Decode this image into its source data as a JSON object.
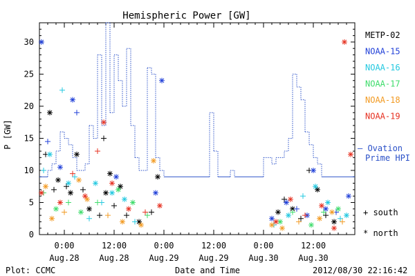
{
  "chart_data": {
    "type": "scatter",
    "title": "Hemispheric Power [GW]",
    "ylabel": "P [GW]",
    "xlabel": "Date and Time",
    "ylim": [
      0,
      33
    ],
    "yticks": [
      0,
      5,
      10,
      15,
      20,
      25,
      30
    ],
    "xlim_hours": [
      -6,
      70
    ],
    "x_ticks": [
      {
        "hour": 0,
        "time": "0:00",
        "date": "Aug.28"
      },
      {
        "hour": 12,
        "time": "12:00",
        "date": "Aug.28"
      },
      {
        "hour": 24,
        "time": "0:00",
        "date": "Aug.29"
      },
      {
        "hour": 36,
        "time": "12:00",
        "date": "Aug.29"
      },
      {
        "hour": 48,
        "time": "0:00",
        "date": "Aug.30"
      },
      {
        "hour": 60,
        "time": "12:00",
        "date": "Aug.30"
      }
    ],
    "legend": {
      "series": [
        {
          "name": "METP-02",
          "color": "#000000"
        },
        {
          "name": "NOAA-15",
          "color": "#1f3fd8"
        },
        {
          "name": "NOAA-16",
          "color": "#22c8e0"
        },
        {
          "name": "NOAA-17",
          "color": "#3ddc6a"
        },
        {
          "name": "NOAA-18",
          "color": "#f29a22"
        },
        {
          "name": "NOAA-19",
          "color": "#e63020"
        }
      ],
      "ovation_label_1": "— Ovation",
      "ovation_label_2": "Prime HPI",
      "ovation_color": "#2a50c8",
      "south_label": "+ south",
      "north_label": "* north"
    },
    "ovation_series": [
      [
        -6,
        9
      ],
      [
        -4,
        9
      ],
      [
        -4,
        10
      ],
      [
        -3,
        10
      ],
      [
        -3,
        11
      ],
      [
        -2,
        11
      ],
      [
        -2,
        13
      ],
      [
        -1,
        13
      ],
      [
        -1,
        16
      ],
      [
        0,
        16
      ],
      [
        0,
        15
      ],
      [
        1,
        15
      ],
      [
        1,
        14
      ],
      [
        2,
        14
      ],
      [
        2,
        12
      ],
      [
        3,
        12
      ],
      [
        3,
        10
      ],
      [
        5,
        10
      ],
      [
        5,
        11
      ],
      [
        6,
        11
      ],
      [
        6,
        17
      ],
      [
        7,
        17
      ],
      [
        7,
        15
      ],
      [
        8,
        15
      ],
      [
        8,
        28
      ],
      [
        9,
        28
      ],
      [
        9,
        17
      ],
      [
        10,
        17
      ],
      [
        10,
        33
      ],
      [
        11,
        33
      ],
      [
        11,
        19
      ],
      [
        12,
        19
      ],
      [
        12,
        28
      ],
      [
        13,
        28
      ],
      [
        13,
        24
      ],
      [
        14,
        24
      ],
      [
        14,
        20
      ],
      [
        15,
        20
      ],
      [
        15,
        29
      ],
      [
        16,
        29
      ],
      [
        16,
        17
      ],
      [
        17,
        17
      ],
      [
        17,
        12
      ],
      [
        18,
        12
      ],
      [
        18,
        10
      ],
      [
        20,
        10
      ],
      [
        20,
        26
      ],
      [
        21,
        26
      ],
      [
        21,
        25
      ],
      [
        22,
        25
      ],
      [
        22,
        12
      ],
      [
        23,
        12
      ],
      [
        23,
        10
      ],
      [
        24,
        10
      ],
      [
        24,
        9
      ],
      [
        35,
        9
      ],
      [
        35,
        19
      ],
      [
        36,
        19
      ],
      [
        36,
        13
      ],
      [
        37,
        13
      ],
      [
        37,
        9
      ],
      [
        40,
        9
      ],
      [
        40,
        10
      ],
      [
        41,
        10
      ],
      [
        41,
        9
      ],
      [
        48,
        9
      ],
      [
        48,
        12
      ],
      [
        50,
        12
      ],
      [
        50,
        11
      ],
      [
        51,
        11
      ],
      [
        51,
        12
      ],
      [
        53,
        12
      ],
      [
        53,
        13
      ],
      [
        54,
        13
      ],
      [
        54,
        15
      ],
      [
        55,
        15
      ],
      [
        55,
        25
      ],
      [
        56,
        25
      ],
      [
        56,
        23
      ],
      [
        57,
        23
      ],
      [
        57,
        21
      ],
      [
        58,
        21
      ],
      [
        58,
        16
      ],
      [
        59,
        16
      ],
      [
        59,
        14
      ],
      [
        60,
        14
      ],
      [
        60,
        12
      ],
      [
        61,
        12
      ],
      [
        61,
        11
      ],
      [
        62,
        11
      ],
      [
        62,
        9
      ],
      [
        70,
        9
      ]
    ],
    "points": [
      {
        "s": 0,
        "h": -4.5,
        "v": 12.5,
        "m": "+"
      },
      {
        "s": 0,
        "h": -3.5,
        "v": 19.0,
        "m": "*"
      },
      {
        "s": 0,
        "h": -2.5,
        "v": 7.0,
        "m": "+"
      },
      {
        "s": 0,
        "h": -1.5,
        "v": 8.5,
        "m": "*"
      },
      {
        "s": 0,
        "h": 0.5,
        "v": 7.5,
        "m": "+"
      },
      {
        "s": 0,
        "h": 1.5,
        "v": 6.5,
        "m": "*"
      },
      {
        "s": 0,
        "h": 3.0,
        "v": 12.5,
        "m": "*"
      },
      {
        "s": 0,
        "h": 4.5,
        "v": 7.0,
        "m": "+"
      },
      {
        "s": 0,
        "h": 6.0,
        "v": 4.0,
        "m": "*"
      },
      {
        "s": 0,
        "h": 8.5,
        "v": 3.0,
        "m": "+"
      },
      {
        "s": 0,
        "h": 9.5,
        "v": 15.0,
        "m": "+"
      },
      {
        "s": 0,
        "h": 10.0,
        "v": 6.5,
        "m": "*"
      },
      {
        "s": 0,
        "h": 11.0,
        "v": 9.5,
        "m": "*"
      },
      {
        "s": 0,
        "h": 12.0,
        "v": 4.5,
        "m": "+"
      },
      {
        "s": 0,
        "h": 13.5,
        "v": 7.5,
        "m": "*"
      },
      {
        "s": 0,
        "h": 15.0,
        "v": 3.0,
        "m": "+"
      },
      {
        "s": 0,
        "h": 18.0,
        "v": 2.0,
        "m": "*"
      },
      {
        "s": 0,
        "h": 21.0,
        "v": 3.5,
        "m": "+"
      },
      {
        "s": 0,
        "h": 22.5,
        "v": 9.0,
        "m": "*"
      },
      {
        "s": 0,
        "h": 51.5,
        "v": 3.5,
        "m": "*"
      },
      {
        "s": 0,
        "h": 53.0,
        "v": 5.5,
        "m": "+"
      },
      {
        "s": 0,
        "h": 55.0,
        "v": 4.0,
        "m": "*"
      },
      {
        "s": 0,
        "h": 57.0,
        "v": 2.5,
        "m": "+"
      },
      {
        "s": 0,
        "h": 59.0,
        "v": 10.0,
        "m": "+"
      },
      {
        "s": 0,
        "h": 61.0,
        "v": 7.0,
        "m": "*"
      },
      {
        "s": 0,
        "h": 63.0,
        "v": 3.0,
        "m": "+"
      },
      {
        "s": 0,
        "h": 65.0,
        "v": 2.0,
        "m": "*"
      },
      {
        "s": 1,
        "h": -5.5,
        "v": 30.0,
        "m": "*"
      },
      {
        "s": 1,
        "h": -4.0,
        "v": 14.5,
        "m": "+"
      },
      {
        "s": 1,
        "h": -1.0,
        "v": 10.5,
        "m": "*"
      },
      {
        "s": 1,
        "h": 2.0,
        "v": 21.0,
        "m": "*"
      },
      {
        "s": 1,
        "h": 3.0,
        "v": 19.0,
        "m": "+"
      },
      {
        "s": 1,
        "h": 12.5,
        "v": 9.0,
        "m": "*"
      },
      {
        "s": 1,
        "h": 22.0,
        "v": 6.5,
        "m": "*"
      },
      {
        "s": 1,
        "h": 23.5,
        "v": 24.0,
        "m": "*"
      },
      {
        "s": 1,
        "h": 50.0,
        "v": 2.5,
        "m": "*"
      },
      {
        "s": 1,
        "h": 53.5,
        "v": 5.0,
        "m": "*"
      },
      {
        "s": 1,
        "h": 56.0,
        "v": 4.0,
        "m": "+"
      },
      {
        "s": 1,
        "h": 58.5,
        "v": 3.0,
        "m": "*"
      },
      {
        "s": 1,
        "h": 60.0,
        "v": 10.0,
        "m": "*"
      },
      {
        "s": 1,
        "h": 63.0,
        "v": 4.0,
        "m": "*"
      },
      {
        "s": 1,
        "h": 65.5,
        "v": 3.5,
        "m": "+"
      },
      {
        "s": 1,
        "h": 68.5,
        "v": 6.0,
        "m": "*"
      },
      {
        "s": 2,
        "h": -5.0,
        "v": 10.0,
        "m": "+"
      },
      {
        "s": 2,
        "h": -3.5,
        "v": 12.5,
        "m": "*"
      },
      {
        "s": 2,
        "h": -0.5,
        "v": 22.5,
        "m": "+"
      },
      {
        "s": 2,
        "h": 1.0,
        "v": 8.0,
        "m": "*"
      },
      {
        "s": 2,
        "h": 2.5,
        "v": 9.0,
        "m": "+"
      },
      {
        "s": 2,
        "h": 6.0,
        "v": 2.5,
        "m": "+"
      },
      {
        "s": 2,
        "h": 7.5,
        "v": 8.0,
        "m": "*"
      },
      {
        "s": 2,
        "h": 9.0,
        "v": 5.0,
        "m": "+"
      },
      {
        "s": 2,
        "h": 11.5,
        "v": 6.5,
        "m": "*"
      },
      {
        "s": 2,
        "h": 14.5,
        "v": 5.5,
        "m": "*"
      },
      {
        "s": 2,
        "h": 17.0,
        "v": 2.0,
        "m": "+"
      },
      {
        "s": 2,
        "h": 50.5,
        "v": 1.5,
        "m": "+"
      },
      {
        "s": 2,
        "h": 54.0,
        "v": 3.0,
        "m": "*"
      },
      {
        "s": 2,
        "h": 57.5,
        "v": 6.0,
        "m": "+"
      },
      {
        "s": 2,
        "h": 60.5,
        "v": 7.5,
        "m": "*"
      },
      {
        "s": 2,
        "h": 63.5,
        "v": 5.0,
        "m": "*"
      },
      {
        "s": 2,
        "h": 66.5,
        "v": 2.5,
        "m": "+"
      },
      {
        "s": 2,
        "h": 68.0,
        "v": 3.0,
        "m": "*"
      },
      {
        "s": 3,
        "h": -5.0,
        "v": 6.5,
        "m": "+"
      },
      {
        "s": 3,
        "h": -2.0,
        "v": 4.0,
        "m": "*"
      },
      {
        "s": 3,
        "h": 1.0,
        "v": 5.0,
        "m": "+"
      },
      {
        "s": 3,
        "h": 4.0,
        "v": 3.5,
        "m": "*"
      },
      {
        "s": 3,
        "h": 8.0,
        "v": 5.0,
        "m": "+"
      },
      {
        "s": 3,
        "h": 13.0,
        "v": 7.0,
        "m": "*"
      },
      {
        "s": 3,
        "h": 16.5,
        "v": 5.0,
        "m": "*"
      },
      {
        "s": 3,
        "h": 20.0,
        "v": 3.0,
        "m": "+"
      },
      {
        "s": 3,
        "h": 52.0,
        "v": 2.0,
        "m": "*"
      },
      {
        "s": 3,
        "h": 55.0,
        "v": 3.5,
        "m": "+"
      },
      {
        "s": 3,
        "h": 59.5,
        "v": 1.5,
        "m": "*"
      },
      {
        "s": 3,
        "h": 62.5,
        "v": 3.5,
        "m": "+"
      },
      {
        "s": 3,
        "h": 66.0,
        "v": 4.0,
        "m": "*"
      },
      {
        "s": 4,
        "h": -4.5,
        "v": 7.5,
        "m": "*"
      },
      {
        "s": 4,
        "h": -3.0,
        "v": 2.5,
        "m": "*"
      },
      {
        "s": 4,
        "h": 0.0,
        "v": 3.5,
        "m": "+"
      },
      {
        "s": 4,
        "h": 3.5,
        "v": 8.5,
        "m": "*"
      },
      {
        "s": 4,
        "h": 5.5,
        "v": 5.5,
        "m": "*"
      },
      {
        "s": 4,
        "h": 10.5,
        "v": 3.0,
        "m": "+"
      },
      {
        "s": 4,
        "h": 14.0,
        "v": 2.0,
        "m": "*"
      },
      {
        "s": 4,
        "h": 18.5,
        "v": 1.5,
        "m": "*"
      },
      {
        "s": 4,
        "h": 21.5,
        "v": 11.5,
        "m": "*"
      },
      {
        "s": 4,
        "h": 50.0,
        "v": 1.5,
        "m": "*"
      },
      {
        "s": 4,
        "h": 52.5,
        "v": 1.0,
        "m": "*"
      },
      {
        "s": 4,
        "h": 56.5,
        "v": 2.0,
        "m": "+"
      },
      {
        "s": 4,
        "h": 61.5,
        "v": 2.5,
        "m": "*"
      },
      {
        "s": 4,
        "h": 64.5,
        "v": 3.5,
        "m": "*"
      },
      {
        "s": 4,
        "h": 67.0,
        "v": 2.0,
        "m": "+"
      },
      {
        "s": 5,
        "h": -5.5,
        "v": 6.5,
        "m": "*"
      },
      {
        "s": 5,
        "h": -1.0,
        "v": 5.0,
        "m": "*"
      },
      {
        "s": 5,
        "h": 2.0,
        "v": 9.5,
        "m": "+"
      },
      {
        "s": 5,
        "h": 5.0,
        "v": 6.0,
        "m": "*"
      },
      {
        "s": 5,
        "h": 8.0,
        "v": 13.0,
        "m": "+"
      },
      {
        "s": 5,
        "h": 9.5,
        "v": 17.5,
        "m": "*"
      },
      {
        "s": 5,
        "h": 11.5,
        "v": 8.0,
        "m": "*"
      },
      {
        "s": 5,
        "h": 15.5,
        "v": 4.0,
        "m": "*"
      },
      {
        "s": 5,
        "h": 19.5,
        "v": 3.5,
        "m": "+"
      },
      {
        "s": 5,
        "h": 23.0,
        "v": 4.5,
        "m": "*"
      },
      {
        "s": 5,
        "h": 51.0,
        "v": 2.0,
        "m": "*"
      },
      {
        "s": 5,
        "h": 54.5,
        "v": 5.5,
        "m": "*"
      },
      {
        "s": 5,
        "h": 58.0,
        "v": 3.0,
        "m": "+"
      },
      {
        "s": 5,
        "h": 62.0,
        "v": 4.5,
        "m": "*"
      },
      {
        "s": 5,
        "h": 65.0,
        "v": 1.0,
        "m": "*"
      },
      {
        "s": 5,
        "h": 67.5,
        "v": 30.0,
        "m": "*"
      },
      {
        "s": 5,
        "h": 69.0,
        "v": 12.5,
        "m": "*"
      }
    ],
    "footer": {
      "left": "Plot: CCMC",
      "right": "2012/08/30 22:16:42"
    }
  }
}
